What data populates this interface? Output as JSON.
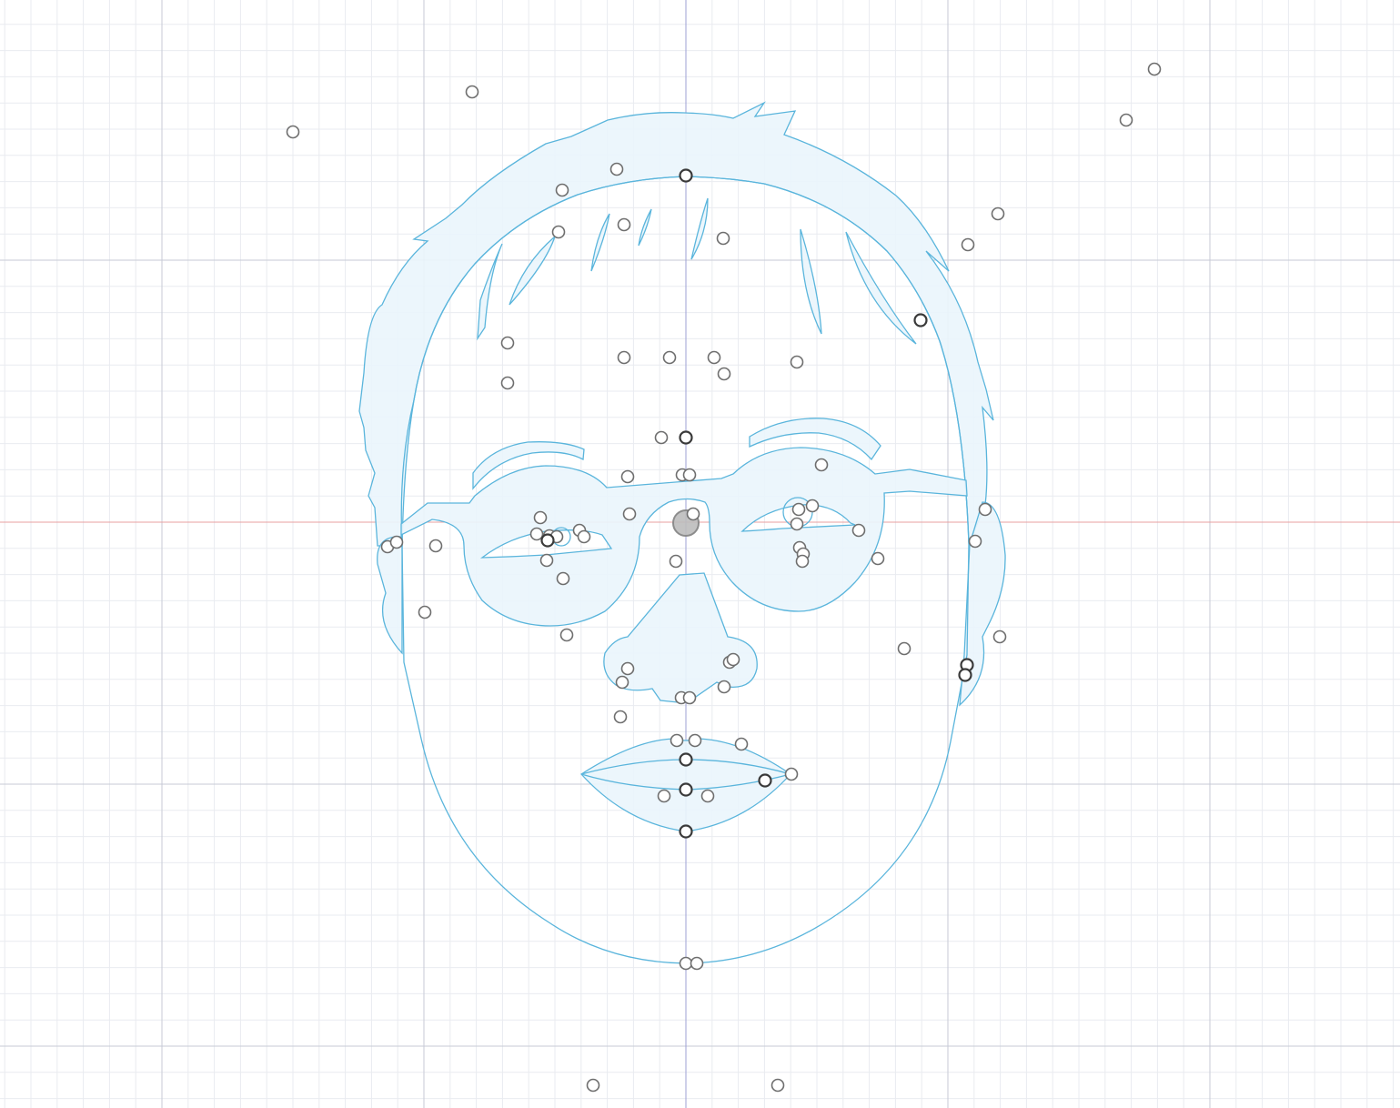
{
  "app": {
    "view": "sketch-canvas",
    "accent_color": "#5ab5dc",
    "shape_fill": "#eaf5fc",
    "axis_x_color": "#e8a0a0",
    "axis_y_color": "#9da0d6",
    "grid_minor_color": "#e9ebf0",
    "grid_major_color": "#c7cad6"
  },
  "sketch": {
    "subject": "face-outline",
    "shapes": [
      "hair",
      "face-outline",
      "left-ear",
      "right-ear",
      "glasses",
      "left-eyebrow",
      "right-eyebrow",
      "left-eye",
      "right-eye",
      "nose",
      "mouth"
    ],
    "origin_marker": "origin-point"
  }
}
